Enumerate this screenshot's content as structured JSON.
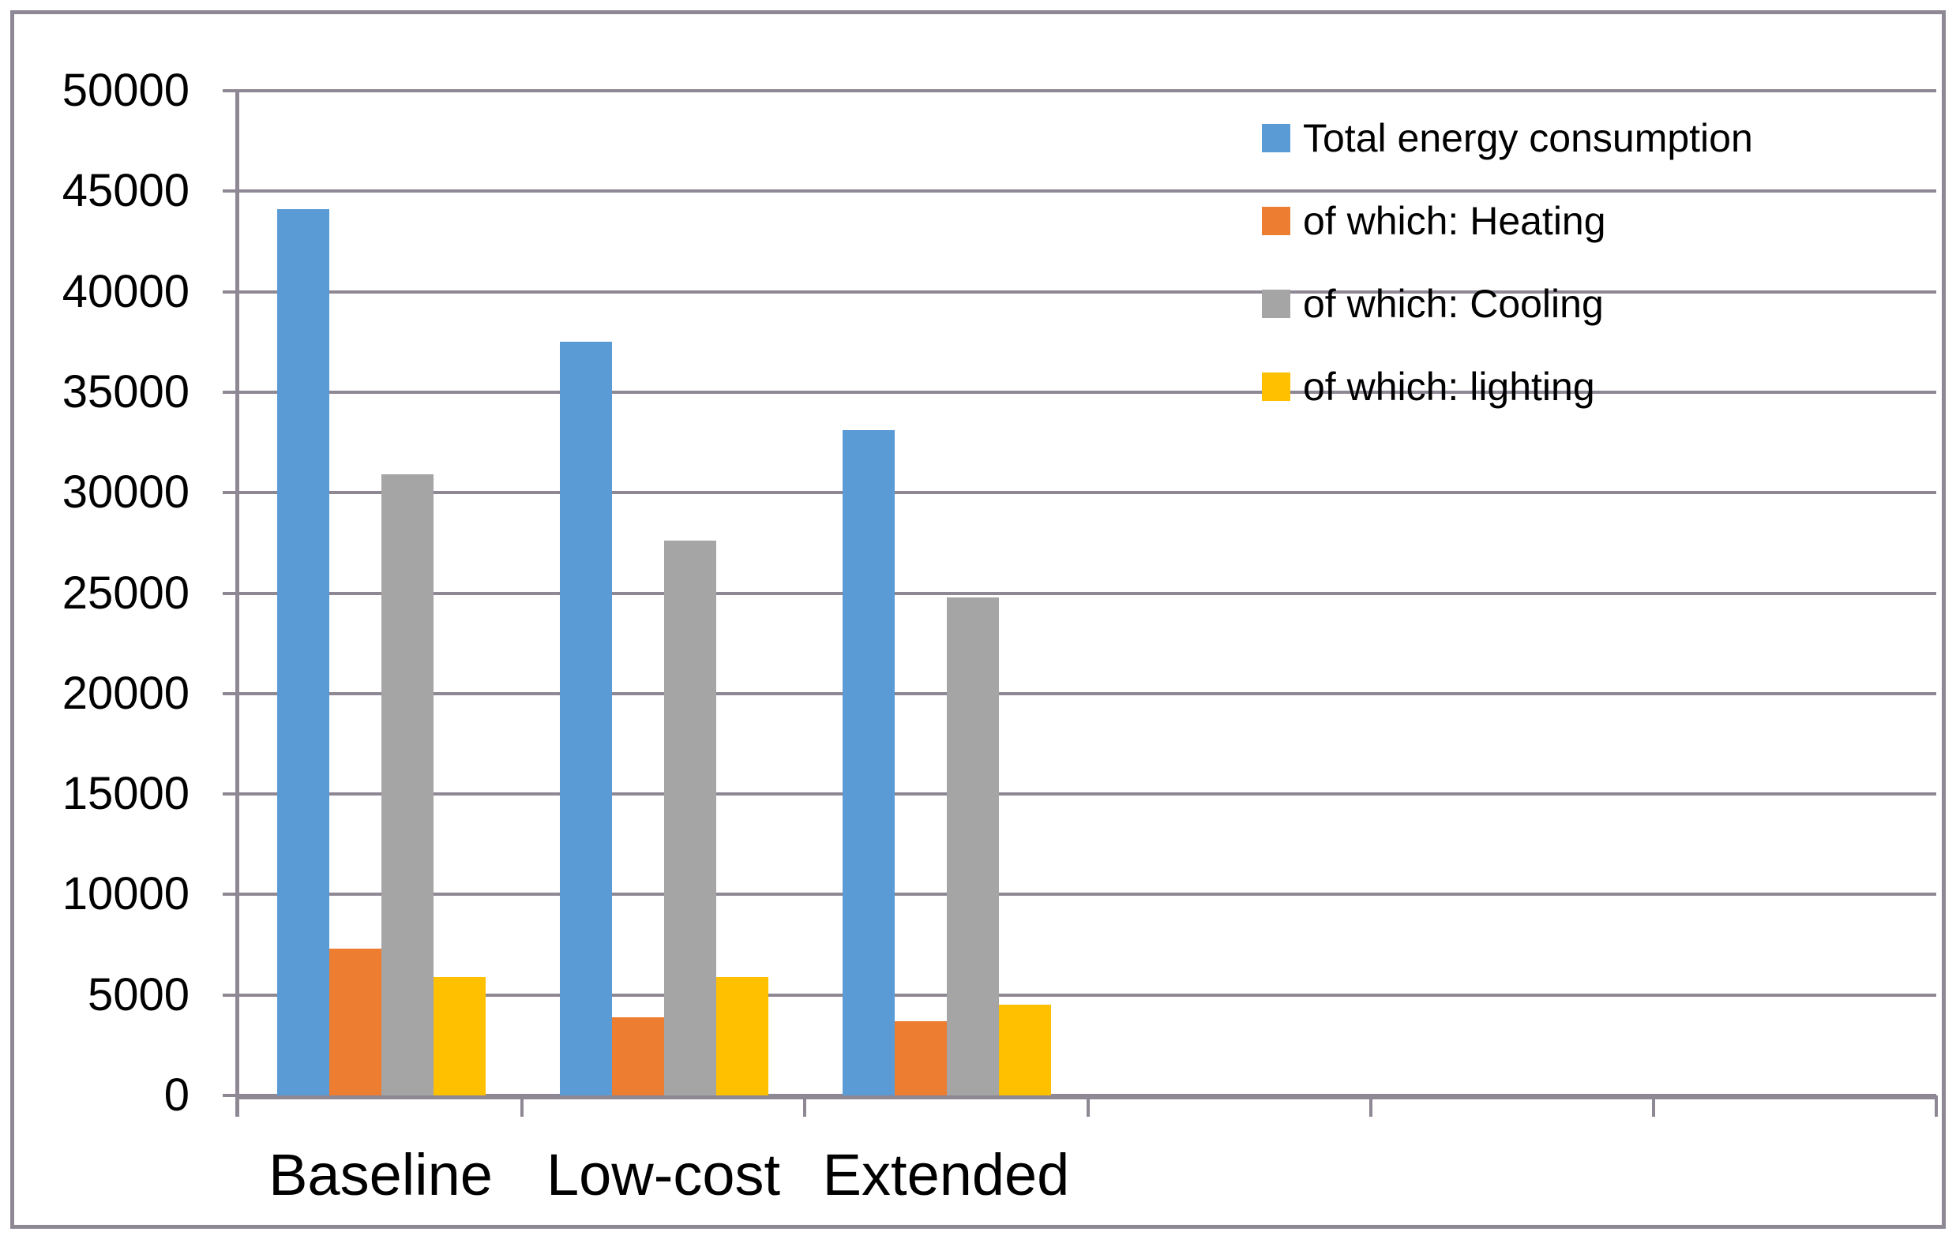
{
  "chart_data": {
    "type": "bar",
    "title": "",
    "categories": [
      "Baseline",
      "Low-cost",
      "Extended"
    ],
    "series": [
      {
        "name": "Total energy consumption",
        "color": "#5B9BD5",
        "values": [
          44100,
          37500,
          33100
        ]
      },
      {
        "name": "of which: Heating",
        "color": "#ED7D31",
        "values": [
          7300,
          3900,
          3700
        ]
      },
      {
        "name": "of which: Cooling",
        "color": "#A5A5A5",
        "values": [
          30900,
          27600,
          24800
        ]
      },
      {
        "name": "of which: lighting",
        "color": "#FFC000",
        "values": [
          5900,
          5900,
          4500
        ]
      }
    ],
    "xlabel": "",
    "ylabel": "",
    "ylim": [
      0,
      50000
    ],
    "ytick_step": 5000,
    "ytick_labels": [
      "0",
      "5000",
      "10000",
      "15000",
      "20000",
      "25000",
      "30000",
      "35000",
      "40000",
      "45000",
      "50000"
    ],
    "grid": true,
    "legend_position": "top-right",
    "category_slots": 6
  },
  "colors": {
    "gridline": "#8E8794",
    "axis": "#8E8794",
    "frame": "#8E8794",
    "text": "#000000",
    "background": "#FFFFFF"
  }
}
